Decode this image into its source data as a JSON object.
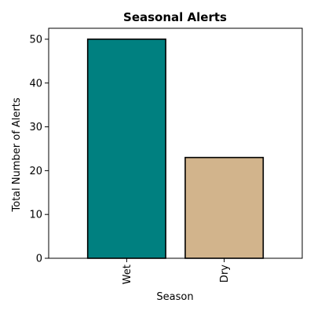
{
  "chart_data": {
    "type": "bar",
    "title": "Seasonal Alerts",
    "xlabel": "Season",
    "ylabel": "Total Number of Alerts",
    "categories": [
      "Wet",
      "Dry"
    ],
    "values": [
      50,
      23
    ],
    "colors": [
      "#008080",
      "#d2b48c"
    ],
    "edge_color": "#000000",
    "ylim": [
      0,
      52.5
    ],
    "yticks": [
      0,
      10,
      20,
      30,
      40,
      50
    ],
    "xtick_rotation": "vertical",
    "grid": false,
    "legend": "none"
  }
}
